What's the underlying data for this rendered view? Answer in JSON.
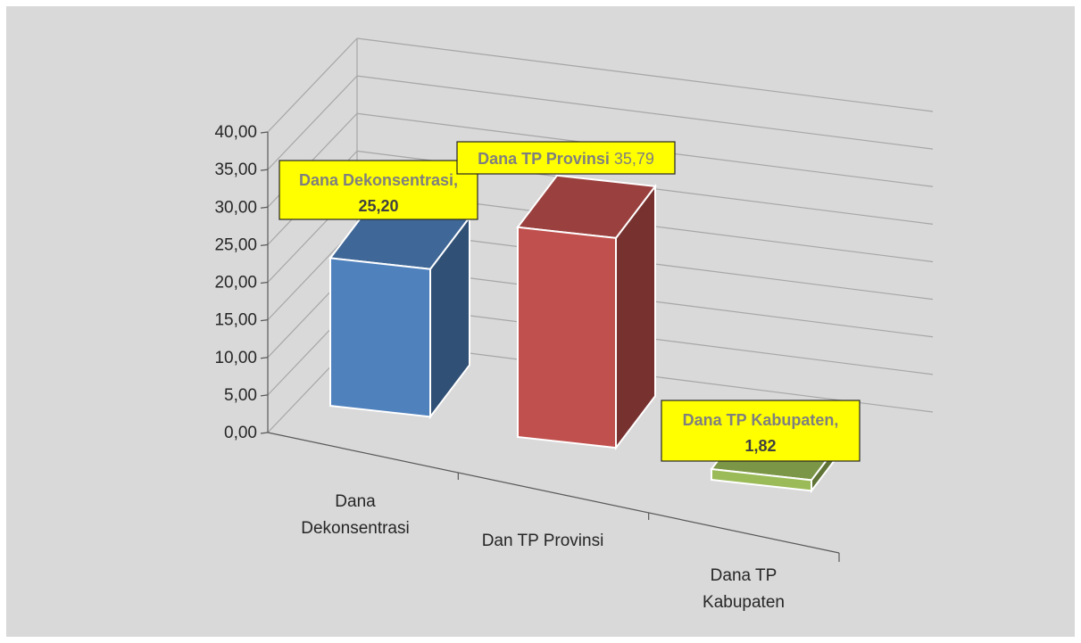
{
  "chart_data": {
    "type": "bar",
    "categories": [
      "Dana\nDekonsentrasi",
      "Dan TP Provinsi",
      "Dana TP\nKabupaten"
    ],
    "values": [
      25.2,
      35.79,
      1.82
    ],
    "ylim": [
      0,
      40
    ],
    "y_ticks": [
      "0,00",
      "5,00",
      "10,00",
      "15,00",
      "20,00",
      "25,00",
      "30,00",
      "35,00",
      "40,00"
    ],
    "grid": true,
    "data_labels": [
      {
        "name": "Dana Dekonsentrasi,",
        "value": "25,20"
      },
      {
        "name": "Dana TP Provinsi",
        "value": "35,79"
      },
      {
        "name": "Dana TP Kabupaten,",
        "value": "1,82"
      }
    ],
    "colors": {
      "bars": [
        "#4f81bd",
        "#c0504d",
        "#9bbb59"
      ],
      "label_bg": "#ffff00",
      "label_text": "#7f7f7f",
      "background": "#d9d9d9",
      "grid": "#a6a6a6"
    }
  }
}
